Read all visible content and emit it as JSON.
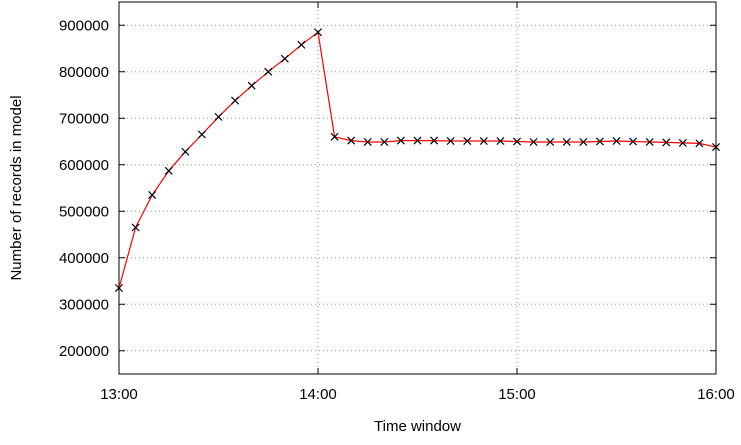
{
  "chart_data": {
    "type": "line",
    "title": "",
    "xlabel": "Time window",
    "ylabel": "Number of records in model",
    "xlim": [
      "13:00",
      "16:00"
    ],
    "ylim": [
      150000,
      950000
    ],
    "grid": true,
    "legend": "none",
    "x_tick_labels": [
      "13:00",
      "14:00",
      "15:00",
      "16:00"
    ],
    "y_tick_labels": [
      "200000",
      "300000",
      "400000",
      "500000",
      "600000",
      "700000",
      "800000",
      "900000"
    ],
    "series": [
      {
        "color": "#ff0000",
        "marker": "x",
        "marker_color": "#000000",
        "x": [
          "13:00",
          "13:05",
          "13:10",
          "13:15",
          "13:20",
          "13:25",
          "13:30",
          "13:35",
          "13:40",
          "13:45",
          "13:50",
          "13:55",
          "14:00",
          "14:05",
          "14:10",
          "14:15",
          "14:20",
          "14:25",
          "14:30",
          "14:35",
          "14:40",
          "14:45",
          "14:50",
          "14:55",
          "15:00",
          "15:05",
          "15:10",
          "15:15",
          "15:20",
          "15:25",
          "15:30",
          "15:35",
          "15:40",
          "15:45",
          "15:50",
          "15:55",
          "16:00"
        ],
        "y": [
          335000,
          465000,
          535000,
          587000,
          628000,
          665000,
          703000,
          738000,
          770000,
          800000,
          828000,
          858000,
          885000,
          660000,
          652000,
          649000,
          649000,
          652000,
          652000,
          652000,
          651000,
          651000,
          651000,
          651000,
          650000,
          649000,
          649000,
          649000,
          649000,
          650000,
          651000,
          650000,
          649000,
          648000,
          647000,
          646000,
          638000
        ]
      }
    ]
  }
}
